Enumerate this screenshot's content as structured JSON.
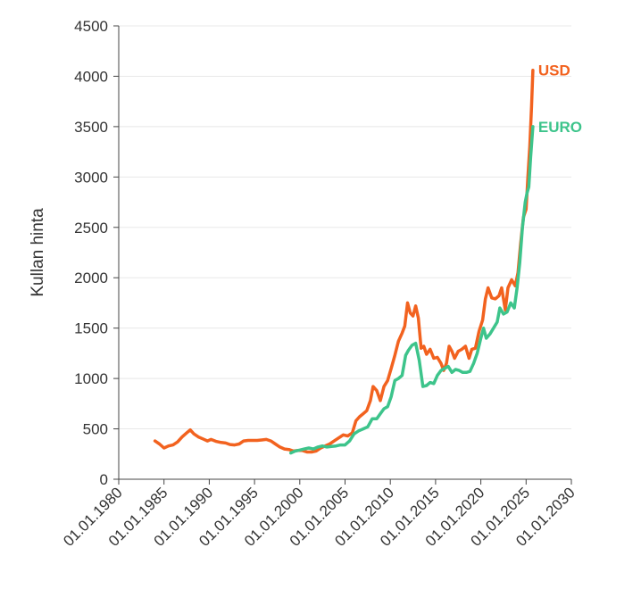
{
  "chart_data": {
    "type": "line",
    "title": "",
    "xlabel": "",
    "ylabel": "Kullan hinta",
    "xlim": [
      1980.0,
      2030.0
    ],
    "ylim": [
      0,
      4500
    ],
    "grid": true,
    "x_ticks": [
      1980,
      1985,
      1990,
      1995,
      2000,
      2005,
      2010,
      2015,
      2020,
      2025,
      2030
    ],
    "x_tick_labels": [
      "01.01.1980",
      "01.01.1985",
      "01.01.1990",
      "01.01.1995",
      "01.01.2000",
      "01.01.2005",
      "01.01.2010",
      "01.01.2015",
      "01.01.2020",
      "01.01.2025",
      "01.01.2030"
    ],
    "y_ticks": [
      0,
      500,
      1000,
      1500,
      2000,
      2500,
      3000,
      3500,
      4000,
      4500
    ],
    "y_tick_labels": [
      "0",
      "500",
      "1000",
      "1500",
      "2000",
      "2500",
      "3000",
      "3500",
      "4000",
      "4500"
    ],
    "series": [
      {
        "name": "USD",
        "color": "#f2621f",
        "x": [
          1984.0,
          1984.5,
          1985.0,
          1985.5,
          1986.0,
          1986.5,
          1987.0,
          1987.5,
          1987.9,
          1988.3,
          1988.8,
          1989.3,
          1989.8,
          1990.2,
          1990.8,
          1991.3,
          1991.8,
          1992.3,
          1992.8,
          1993.3,
          1993.8,
          1994.3,
          1994.8,
          1995.3,
          1995.8,
          1996.3,
          1996.8,
          1997.3,
          1997.8,
          1998.3,
          1998.8,
          1999.3,
          1999.8,
          2000.3,
          2000.8,
          2001.3,
          2001.8,
          2002.3,
          2002.8,
          2003.3,
          2003.8,
          2004.3,
          2004.8,
          2005.3,
          2005.8,
          2006.2,
          2006.6,
          2007.0,
          2007.4,
          2007.8,
          2008.1,
          2008.5,
          2008.9,
          2009.3,
          2009.7,
          2010.1,
          2010.5,
          2010.9,
          2011.3,
          2011.6,
          2011.9,
          2012.2,
          2012.5,
          2012.8,
          2013.1,
          2013.4,
          2013.7,
          2014.0,
          2014.4,
          2014.8,
          2015.2,
          2015.6,
          2015.9,
          2016.2,
          2016.5,
          2016.8,
          2017.1,
          2017.5,
          2017.9,
          2018.3,
          2018.7,
          2019.0,
          2019.4,
          2019.8,
          2020.2,
          2020.5,
          2020.8,
          2021.2,
          2021.6,
          2022.0,
          2022.3,
          2022.7,
          2023.0,
          2023.4,
          2023.8,
          2024.1,
          2024.4,
          2024.7,
          2025.0,
          2025.2,
          2025.4,
          2025.6,
          2025.75
        ],
        "values": [
          380,
          350,
          310,
          330,
          340,
          370,
          420,
          460,
          490,
          450,
          420,
          400,
          380,
          395,
          375,
          365,
          360,
          345,
          340,
          350,
          380,
          385,
          385,
          385,
          390,
          395,
          380,
          350,
          320,
          300,
          295,
          280,
          285,
          285,
          270,
          270,
          280,
          310,
          330,
          350,
          380,
          410,
          440,
          430,
          460,
          580,
          620,
          650,
          680,
          780,
          920,
          880,
          780,
          920,
          980,
          1100,
          1230,
          1370,
          1450,
          1520,
          1750,
          1650,
          1620,
          1720,
          1600,
          1300,
          1320,
          1240,
          1290,
          1200,
          1210,
          1150,
          1080,
          1150,
          1320,
          1270,
          1200,
          1270,
          1290,
          1320,
          1200,
          1290,
          1300,
          1470,
          1580,
          1790,
          1900,
          1800,
          1790,
          1820,
          1900,
          1680,
          1900,
          1980,
          1920,
          2050,
          2340,
          2600,
          2680,
          3000,
          3300,
          3700,
          4060
        ]
      },
      {
        "name": "EURO",
        "color": "#3dc48b",
        "x": [
          1999.0,
          1999.5,
          2000.0,
          2000.5,
          2001.0,
          2001.5,
          2002.0,
          2002.5,
          2003.0,
          2003.5,
          2004.0,
          2004.5,
          2005.0,
          2005.5,
          2006.0,
          2006.5,
          2007.0,
          2007.5,
          2008.0,
          2008.5,
          2008.9,
          2009.3,
          2009.7,
          2010.1,
          2010.5,
          2010.9,
          2011.3,
          2011.7,
          2012.0,
          2012.4,
          2012.8,
          2013.2,
          2013.6,
          2014.0,
          2014.4,
          2014.8,
          2015.2,
          2015.6,
          2016.0,
          2016.4,
          2016.8,
          2017.2,
          2017.6,
          2018.0,
          2018.4,
          2018.8,
          2019.2,
          2019.6,
          2020.0,
          2020.3,
          2020.6,
          2021.0,
          2021.4,
          2021.8,
          2022.1,
          2022.5,
          2022.9,
          2023.3,
          2023.7,
          2024.0,
          2024.3,
          2024.6,
          2024.9,
          2025.1,
          2025.3,
          2025.5,
          2025.75
        ],
        "values": [
          260,
          280,
          290,
          300,
          310,
          300,
          320,
          330,
          320,
          325,
          330,
          340,
          340,
          380,
          450,
          480,
          500,
          520,
          600,
          600,
          650,
          700,
          720,
          820,
          980,
          1000,
          1030,
          1230,
          1280,
          1330,
          1350,
          1180,
          920,
          930,
          960,
          950,
          1030,
          1080,
          1100,
          1120,
          1060,
          1090,
          1080,
          1060,
          1060,
          1070,
          1150,
          1250,
          1400,
          1500,
          1400,
          1440,
          1500,
          1560,
          1700,
          1640,
          1660,
          1750,
          1700,
          1900,
          2150,
          2500,
          2750,
          2840,
          2900,
          3200,
          3500
        ]
      }
    ]
  }
}
